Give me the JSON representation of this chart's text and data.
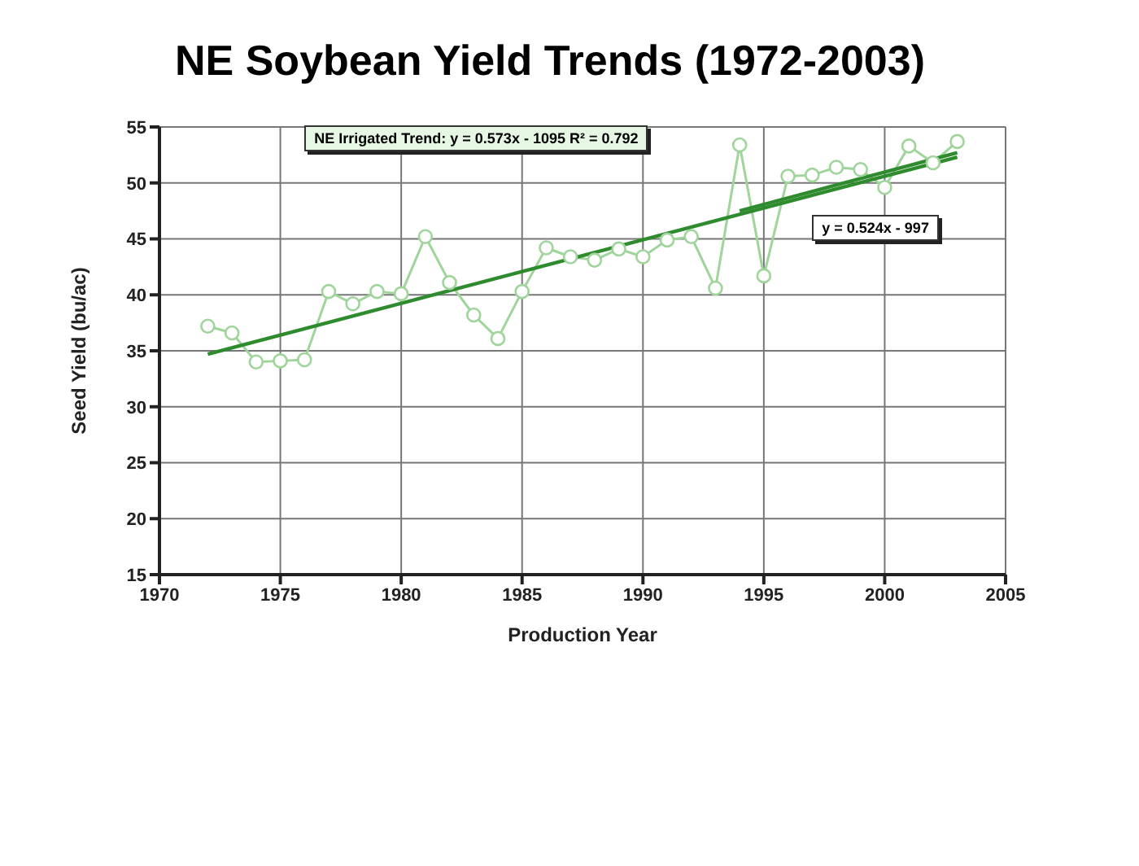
{
  "chart_data": {
    "type": "line",
    "title": "NE Soybean Yield Trends (1972-2003)",
    "xlabel": "Production Year",
    "ylabel": "Seed Yield (bu/ac)",
    "xlim": [
      1970,
      2005
    ],
    "xticks": [
      1970,
      1975,
      1980,
      1985,
      1990,
      1995,
      2000,
      2005
    ],
    "ylim": [
      15,
      55
    ],
    "yticks": [
      15,
      20,
      25,
      30,
      35,
      40,
      45,
      50,
      55
    ],
    "grid": true,
    "legend": false,
    "series": [
      {
        "type": "line",
        "color": "#9fd49a",
        "marker": "circle",
        "x": [
          1972,
          1973,
          1974,
          1975,
          1976,
          1977,
          1978,
          1979,
          1980,
          1981,
          1982,
          1983,
          1984,
          1985,
          1986,
          1987,
          1988,
          1989,
          1990,
          1991,
          1992,
          1993,
          1994,
          1995,
          1996,
          1997,
          1998,
          1999,
          2000,
          2001,
          2002,
          2003
        ],
        "values": [
          37.2,
          36.6,
          34.0,
          34.1,
          34.2,
          40.3,
          39.2,
          40.3,
          40.1,
          45.2,
          41.1,
          38.2,
          36.1,
          40.3,
          44.2,
          43.4,
          43.1,
          44.1,
          43.4,
          44.9,
          45.2,
          40.6,
          53.4,
          41.7,
          50.6,
          50.7,
          51.4,
          51.2,
          49.6,
          53.3,
          51.8,
          53.7
        ]
      },
      {
        "type": "line",
        "color": "#2e8b2e",
        "marker": "none",
        "x": [
          1972,
          2003
        ],
        "values": [
          34.7,
          52.3
        ]
      },
      {
        "type": "line",
        "color": "#2e8b2e",
        "marker": "none",
        "x": [
          1994,
          2003
        ],
        "values": [
          47.5,
          52.7
        ]
      }
    ],
    "annotations": [
      "NE Irrigated Trend:  y = 0.573x - 1095  R² = 0.792",
      "y = 0.524x - 997"
    ]
  }
}
